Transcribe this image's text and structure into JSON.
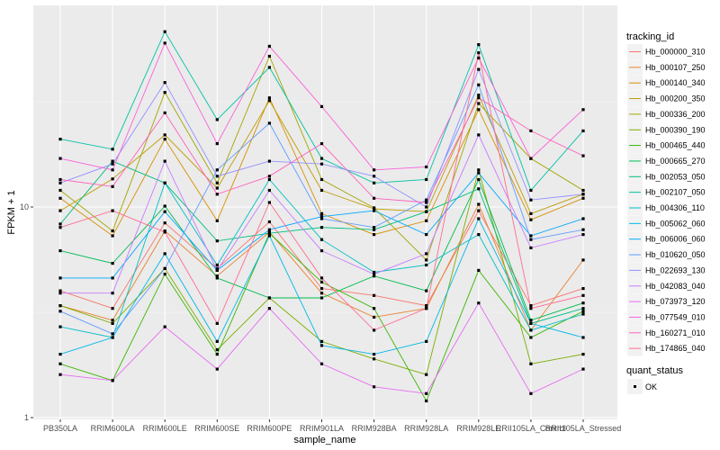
{
  "chart_data": {
    "type": "line",
    "xlabel": "sample_name",
    "ylabel": "FPKM + 1",
    "y_scale": "log10",
    "ylim": [
      1,
      80
    ],
    "y_ticks": [
      {
        "value": 1,
        "label": "1"
      },
      {
        "value": 10,
        "label": "10"
      }
    ],
    "grid": true,
    "legend_position": "right",
    "categories": [
      "PB350LA",
      "RRIM600LA",
      "RRIM600LE",
      "RRIM600SE",
      "RRIM600PE",
      "RRIM901LA",
      "RRIM928BA",
      "RRIM928LA",
      "RRIM928LE",
      "RRII105LA_Control",
      "RRII105LA_Stressed"
    ],
    "legend_title": "tracking_id",
    "series": [
      {
        "name": "Hb_000000_310",
        "color": "#F8766D",
        "values": [
          4.0,
          3.3,
          8.4,
          5.1,
          8.5,
          4.1,
          3.8,
          3.4,
          9.6,
          3.4,
          4.1
        ]
      },
      {
        "name": "Hb_000107_250",
        "color": "#EA8331",
        "values": [
          3.4,
          2.9,
          7.7,
          4.7,
          7.6,
          3.9,
          3.0,
          3.3,
          10.3,
          2.6,
          5.6
        ]
      },
      {
        "name": "Hb_000140_340",
        "color": "#D89000",
        "values": [
          11.0,
          7.3,
          21.0,
          8.6,
          33.0,
          9.3,
          7.4,
          8.6,
          29.0,
          8.7,
          11.0
        ]
      },
      {
        "name": "Hb_000200_350",
        "color": "#C09B00",
        "values": [
          9.6,
          13.6,
          22.0,
          12.3,
          32.0,
          12.0,
          9.8,
          9.5,
          34.0,
          9.3,
          11.5
        ]
      },
      {
        "name": "Hb_000336_200",
        "color": "#A3A500",
        "values": [
          12.0,
          7.7,
          35.0,
          13.0,
          52.0,
          13.5,
          9.9,
          5.6,
          31.0,
          17.0,
          12.0
        ]
      },
      {
        "name": "Hb_000390_190",
        "color": "#7CAE00",
        "values": [
          3.4,
          2.8,
          5.1,
          2.1,
          3.7,
          2.3,
          1.9,
          1.6,
          15.0,
          1.8,
          2.0
        ]
      },
      {
        "name": "Hb_000465_440",
        "color": "#39B600",
        "values": [
          1.8,
          1.5,
          4.8,
          2.0,
          7.5,
          4.4,
          3.3,
          1.2,
          5.0,
          2.4,
          3.2
        ]
      },
      {
        "name": "Hb_000665_270",
        "color": "#00BB4E",
        "values": [
          6.2,
          5.4,
          10.1,
          4.6,
          3.7,
          3.7,
          4.7,
          4.0,
          13.5,
          2.9,
          3.5
        ]
      },
      {
        "name": "Hb_002053_050",
        "color": "#00BF7D",
        "values": [
          8.3,
          16.5,
          13.0,
          6.9,
          7.5,
          8.0,
          7.8,
          9.5,
          12.2,
          2.8,
          3.3
        ]
      },
      {
        "name": "Hb_002107_050",
        "color": "#00C1A3",
        "values": [
          21.0,
          18.8,
          68.0,
          26.0,
          46.0,
          17.0,
          13.0,
          13.5,
          59.0,
          12.0,
          23.0
        ]
      },
      {
        "name": "Hb_004306_110",
        "color": "#00BFC4",
        "values": [
          2.7,
          2.4,
          13.0,
          5.3,
          13.5,
          7.0,
          4.9,
          5.3,
          7.4,
          2.6,
          3.1
        ]
      },
      {
        "name": "Hb_005062_060",
        "color": "#00B8E7",
        "values": [
          2.0,
          2.4,
          6.0,
          2.3,
          7.3,
          2.2,
          2.0,
          2.3,
          8.8,
          2.8,
          2.4
        ]
      },
      {
        "name": "Hb_006006_060",
        "color": "#00A9FF",
        "values": [
          4.6,
          4.6,
          9.5,
          5.0,
          7.8,
          9.0,
          9.6,
          7.4,
          14.5,
          7.3,
          8.8
        ]
      },
      {
        "name": "Hb_010620_050",
        "color": "#619CFF",
        "values": [
          3.2,
          2.5,
          5.1,
          15.0,
          25.0,
          8.8,
          8.0,
          10.8,
          38.0,
          7.0,
          7.8
        ]
      },
      {
        "name": "Hb_022693_130",
        "color": "#9590FF",
        "values": [
          13.0,
          16.0,
          39.0,
          14.0,
          16.5,
          16.0,
          14.0,
          10.0,
          45.0,
          10.8,
          11.5
        ]
      },
      {
        "name": "Hb_042083_040",
        "color": "#C77CFF",
        "values": [
          3.9,
          3.9,
          16.5,
          5.0,
          12.0,
          6.2,
          4.8,
          6.0,
          22.0,
          6.4,
          7.4
        ]
      },
      {
        "name": "Hb_073973_120",
        "color": "#E76BF3",
        "values": [
          1.6,
          1.5,
          2.7,
          1.7,
          3.3,
          1.8,
          1.4,
          1.3,
          3.5,
          1.3,
          1.7
        ]
      },
      {
        "name": "Hb_077549_010",
        "color": "#FA62DB",
        "values": [
          17.0,
          15.0,
          60.0,
          20.0,
          58.0,
          30.0,
          15.0,
          15.5,
          51.0,
          17.0,
          29.0
        ]
      },
      {
        "name": "Hb_160271_010",
        "color": "#FF62BC",
        "values": [
          13.5,
          12.5,
          28.0,
          11.5,
          14.0,
          20.0,
          11.0,
          10.5,
          33.0,
          23.0,
          17.5
        ]
      },
      {
        "name": "Hb_174865_040",
        "color": "#FF6C91",
        "values": [
          8.0,
          9.6,
          7.6,
          2.8,
          10.5,
          4.6,
          2.6,
          3.3,
          54.0,
          3.3,
          3.8
        ]
      }
    ],
    "quant_status_legend": {
      "title": "quant_status",
      "label": "OK"
    }
  }
}
